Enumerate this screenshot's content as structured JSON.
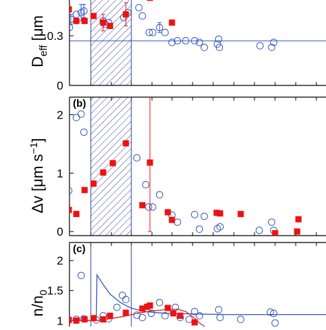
{
  "chart_data": [
    {
      "type": "scatter",
      "panel_label": "",
      "ylabel_main": "D",
      "ylabel_sub": "eff",
      "ylabel_rest": " [μm",
      "yticks": [
        {
          "value": 0,
          "label": "0"
        },
        {
          "value": 0.3,
          "label": "0.3"
        }
      ],
      "ylim": [
        0,
        0.55
      ],
      "hlines": [
        {
          "y": 0.52,
          "color": "#dd2222"
        },
        {
          "y": 0.27,
          "color": "#3355bb"
        }
      ],
      "series": [
        {
          "marker": "open-circle",
          "color": "#3355bb",
          "points": [
            {
              "x": 101,
              "y": 0.35
            },
            {
              "x": 103,
              "y": 0.4,
              "err": 0.03
            },
            {
              "x": 111,
              "y": 0.43
            },
            {
              "x": 118,
              "y": 0.44,
              "err": 0.05
            },
            {
              "x": 122,
              "y": 0.45,
              "err": 0.04
            },
            {
              "x": 150,
              "y": 0.39
            },
            {
              "x": 153,
              "y": 0.37
            },
            {
              "x": 158,
              "y": 0.38
            },
            {
              "x": 180,
              "y": 0.41
            },
            {
              "x": 186,
              "y": 0.44
            },
            {
              "x": 202,
              "y": 0.47
            },
            {
              "x": 207,
              "y": 0.42
            },
            {
              "x": 217,
              "y": 0.32
            },
            {
              "x": 222,
              "y": 0.32
            },
            {
              "x": 232,
              "y": 0.35,
              "err": 0.03
            },
            {
              "x": 240,
              "y": 0.32
            },
            {
              "x": 250,
              "y": 0.26
            },
            {
              "x": 258,
              "y": 0.27
            },
            {
              "x": 270,
              "y": 0.27
            },
            {
              "x": 283,
              "y": 0.27
            },
            {
              "x": 290,
              "y": 0.26
            },
            {
              "x": 297,
              "y": 0.23
            },
            {
              "x": 316,
              "y": 0.25
            },
            {
              "x": 318,
              "y": 0.28
            },
            {
              "x": 319,
              "y": 0.23
            },
            {
              "x": 378,
              "y": 0.24
            },
            {
              "x": 395,
              "y": 0.23
            },
            {
              "x": 398,
              "y": 0.26
            }
          ]
        },
        {
          "marker": "filled-square",
          "color": "#ee1111",
          "points": [
            {
              "x": 100,
              "y": 0.46
            },
            {
              "x": 111,
              "y": 0.39
            },
            {
              "x": 123,
              "y": 0.39
            },
            {
              "x": 136,
              "y": 0.42
            },
            {
              "x": 150,
              "y": 0.38,
              "err": 0.05
            },
            {
              "x": 160,
              "y": 0.36
            },
            {
              "x": 183,
              "y": 0.43,
              "err": 0.07
            },
            {
              "x": 218,
              "y": 0.53
            },
            {
              "x": 250,
              "y": 0.38
            },
            {
              "x": 350,
              "y": 0.56
            }
          ]
        }
      ]
    },
    {
      "type": "scatter",
      "panel_label": "(b)",
      "ylabel_main": "Δv [μm s",
      "ylabel_sup": "−1",
      "ylabel_rest": "]",
      "yticks": [
        {
          "value": 0,
          "label": "0"
        },
        {
          "value": 1,
          "label": "1"
        },
        {
          "value": 2,
          "label": "2"
        }
      ],
      "ylim": [
        -0.07,
        2.3
      ],
      "hlines": [],
      "series": [
        {
          "marker": "open-circle",
          "color": "#3355bb",
          "points": [
            {
              "x": 100,
              "y": 0.7
            },
            {
              "x": 111,
              "y": 1.95
            },
            {
              "x": 118,
              "y": 2.01
            },
            {
              "x": 122,
              "y": 1.7
            },
            {
              "x": 199,
              "y": 1.26
            },
            {
              "x": 212,
              "y": 0.8
            },
            {
              "x": 216,
              "y": 0.42
            },
            {
              "x": 222,
              "y": 0.42
            },
            {
              "x": 232,
              "y": 0.63
            },
            {
              "x": 250,
              "y": 0.28
            },
            {
              "x": 258,
              "y": 0.16
            },
            {
              "x": 283,
              "y": 0.29
            },
            {
              "x": 290,
              "y": 0.04
            },
            {
              "x": 297,
              "y": 0.26
            },
            {
              "x": 316,
              "y": 0.05
            },
            {
              "x": 320,
              "y": 0.08
            },
            {
              "x": 377,
              "y": 0.02
            },
            {
              "x": 395,
              "y": 0.16
            },
            {
              "x": 398,
              "y": 0.02
            }
          ]
        },
        {
          "marker": "filled-square",
          "color": "#ee1111",
          "points": [
            {
              "x": 100,
              "y": 0.37
            },
            {
              "x": 111,
              "y": 0.3
            },
            {
              "x": 123,
              "y": 0.71
            },
            {
              "x": 136,
              "y": 0.82
            },
            {
              "x": 150,
              "y": 1.01
            },
            {
              "x": 164,
              "y": 1.17
            },
            {
              "x": 183,
              "y": 1.51
            },
            {
              "x": 207,
              "y": 0.45
            },
            {
              "x": 218,
              "y": 1.18,
              "err": 1.18
            },
            {
              "x": 244,
              "y": 0.33
            },
            {
              "x": 250,
              "y": 0.2
            },
            {
              "x": 315,
              "y": 0.32
            },
            {
              "x": 320,
              "y": 0.31
            },
            {
              "x": 350,
              "y": 0.3
            },
            {
              "x": 400,
              "y": -0.03
            },
            {
              "x": 432,
              "y": 0.0
            },
            {
              "x": 434,
              "y": 0.21
            }
          ]
        }
      ]
    },
    {
      "type": "scatter",
      "panel_label": "(c)",
      "ylabel_main": "n/n",
      "ylabel_sub": "0",
      "ylabel_rest": "",
      "yticks": [
        {
          "value": 1,
          "label": "1"
        },
        {
          "value": 1.5,
          "label": "1.5"
        },
        {
          "value": 2,
          "label": "2"
        }
      ],
      "ylim": [
        0.9,
        2.3
      ],
      "hlines": [],
      "series": [
        {
          "marker": "open-circle",
          "color": "#3355bb",
          "points": [
            {
              "x": 111,
              "y": 1.02
            },
            {
              "x": 118,
              "y": 1.75
            },
            {
              "x": 122,
              "y": 1.03
            },
            {
              "x": 140,
              "y": 1.01
            },
            {
              "x": 150,
              "y": 1.08
            },
            {
              "x": 158,
              "y": 1.03
            },
            {
              "x": 170,
              "y": 1.22
            },
            {
              "x": 178,
              "y": 1.42
            },
            {
              "x": 183,
              "y": 1.35
            },
            {
              "x": 199,
              "y": 1.09
            },
            {
              "x": 207,
              "y": 1.05
            },
            {
              "x": 220,
              "y": 1.12
            },
            {
              "x": 232,
              "y": 1.3
            },
            {
              "x": 240,
              "y": 1.08
            },
            {
              "x": 255,
              "y": 1.22
            },
            {
              "x": 262,
              "y": 1.05
            },
            {
              "x": 275,
              "y": 1.02
            },
            {
              "x": 283,
              "y": 1.15
            },
            {
              "x": 290,
              "y": 1.08
            },
            {
              "x": 318,
              "y": 1.18
            },
            {
              "x": 320,
              "y": 1.05
            },
            {
              "x": 350,
              "y": 1.02
            },
            {
              "x": 393,
              "y": 1.14
            },
            {
              "x": 398,
              "y": 1.12
            },
            {
              "x": 400,
              "y": 0.96
            }
          ]
        },
        {
          "marker": "filled-square",
          "color": "#ee1111",
          "points": [
            {
              "x": 100,
              "y": 1.01
            },
            {
              "x": 111,
              "y": 1.0
            },
            {
              "x": 123,
              "y": 1.02
            },
            {
              "x": 136,
              "y": 1.04
            },
            {
              "x": 150,
              "y": 1.02
            },
            {
              "x": 160,
              "y": 1.08
            },
            {
              "x": 183,
              "y": 1.13
            },
            {
              "x": 207,
              "y": 1.2
            },
            {
              "x": 214,
              "y": 1.23
            },
            {
              "x": 218,
              "y": 1.25
            },
            {
              "x": 244,
              "y": 1.21
            },
            {
              "x": 252,
              "y": 1.12
            },
            {
              "x": 262,
              "y": 1.08
            },
            {
              "x": 283,
              "y": 0.97
            }
          ]
        }
      ],
      "curves": [
        {
          "color": "#3355bb",
          "points": [
            [
              92,
              1.0
            ],
            [
              140,
              1.0
            ],
            [
              141,
              1.76
            ],
            [
              150,
              1.6
            ],
            [
              160,
              1.44
            ],
            [
              175,
              1.3
            ],
            [
              190,
              1.21
            ],
            [
              210,
              1.15
            ],
            [
              240,
              1.12
            ],
            [
              280,
              1.11
            ],
            [
              330,
              1.1
            ],
            [
              474,
              1.1
            ]
          ]
        },
        {
          "color": "#dd2222",
          "points": [
            [
              92,
              1.0
            ],
            [
              140,
              1.0
            ],
            [
              160,
              1.03
            ],
            [
              180,
              1.07
            ],
            [
              200,
              1.12
            ],
            [
              220,
              1.16
            ],
            [
              240,
              1.18
            ],
            [
              258,
              1.19
            ],
            [
              270,
              1.15
            ],
            [
              280,
              1.07
            ],
            [
              290,
              0.96
            ],
            [
              300,
              0.88
            ]
          ]
        }
      ]
    }
  ]
}
